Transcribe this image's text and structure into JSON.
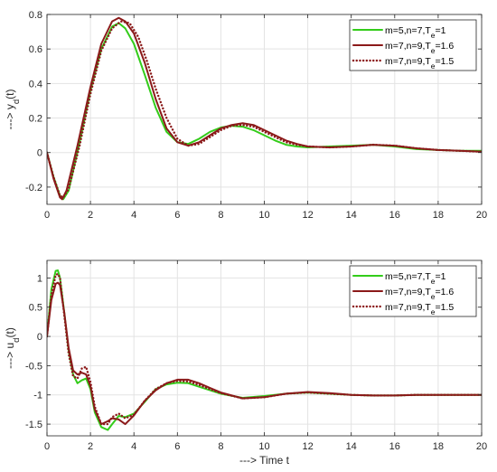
{
  "chart_data": [
    {
      "type": "line",
      "ylabel": "---> y_d(t)",
      "xlabel": "",
      "xlim": [
        0,
        20
      ],
      "ylim": [
        -0.3,
        0.8
      ],
      "xticks": [
        0,
        2,
        4,
        6,
        8,
        10,
        12,
        14,
        16,
        18,
        20
      ],
      "yticks": [
        -0.2,
        0,
        0.2,
        0.4,
        0.6,
        0.8
      ],
      "grid": true,
      "legend_position": "top-right",
      "series": [
        {
          "name": "m=5,n=7,T_e=1",
          "color": "#33cc1a",
          "style": "solid",
          "x": [
            0,
            0.3,
            0.6,
            0.75,
            1.0,
            1.5,
            2.0,
            2.5,
            3.0,
            3.3,
            3.6,
            4.0,
            4.5,
            5.0,
            5.5,
            6.0,
            6.5,
            7.0,
            7.5,
            8.0,
            8.5,
            9.0,
            9.5,
            10.0,
            10.5,
            11.0,
            11.5,
            12.0,
            13.0,
            14.0,
            15.0,
            16.0,
            17.0,
            18.0,
            19.0,
            20.0
          ],
          "y": [
            0,
            -0.14,
            -0.25,
            -0.27,
            -0.22,
            0.06,
            0.36,
            0.6,
            0.73,
            0.75,
            0.72,
            0.63,
            0.45,
            0.26,
            0.12,
            0.06,
            0.05,
            0.08,
            0.12,
            0.145,
            0.155,
            0.15,
            0.13,
            0.1,
            0.07,
            0.045,
            0.035,
            0.03,
            0.035,
            0.04,
            0.045,
            0.035,
            0.02,
            0.015,
            0.01,
            0.01
          ]
        },
        {
          "name": "m=7,n=9,T_e=1.6",
          "color": "#8b1a1a",
          "style": "solid",
          "x": [
            0,
            0.3,
            0.6,
            0.7,
            0.9,
            1.4,
            2.0,
            2.5,
            3.0,
            3.3,
            3.6,
            4.0,
            4.5,
            5.0,
            5.5,
            6.0,
            6.5,
            7.0,
            7.5,
            8.0,
            8.5,
            9.0,
            9.5,
            10.0,
            10.5,
            11.0,
            11.5,
            12.0,
            13.0,
            14.0,
            15.0,
            16.0,
            17.0,
            18.0,
            19.0,
            20.0
          ],
          "y": [
            0,
            -0.15,
            -0.26,
            -0.27,
            -0.22,
            0.04,
            0.38,
            0.63,
            0.76,
            0.78,
            0.76,
            0.69,
            0.52,
            0.31,
            0.14,
            0.06,
            0.04,
            0.06,
            0.1,
            0.14,
            0.16,
            0.17,
            0.16,
            0.13,
            0.1,
            0.07,
            0.05,
            0.035,
            0.03,
            0.035,
            0.045,
            0.04,
            0.025,
            0.015,
            0.01,
            0.005
          ]
        },
        {
          "name": "m=7,n=9,T_e=1.5",
          "color": "#8b1a1a",
          "style": "dotted",
          "x": [
            0,
            0.3,
            0.6,
            0.75,
            1.0,
            1.5,
            2.0,
            2.5,
            3.0,
            3.4,
            3.8,
            4.2,
            4.6,
            5.0,
            5.5,
            6.0,
            6.5,
            7.0,
            7.5,
            8.0,
            8.5,
            9.0,
            9.5,
            10.0,
            10.5,
            11.0,
            11.5,
            12.0,
            13.0,
            14.0,
            15.0,
            16.0,
            17.0,
            18.0,
            19.0,
            20.0
          ],
          "y": [
            0,
            -0.14,
            -0.25,
            -0.26,
            -0.21,
            0.04,
            0.34,
            0.59,
            0.72,
            0.76,
            0.75,
            0.67,
            0.53,
            0.37,
            0.2,
            0.08,
            0.04,
            0.05,
            0.09,
            0.13,
            0.155,
            0.16,
            0.15,
            0.12,
            0.09,
            0.06,
            0.045,
            0.035,
            0.03,
            0.035,
            0.045,
            0.04,
            0.025,
            0.015,
            0.01,
            0.005
          ]
        }
      ]
    },
    {
      "type": "line",
      "ylabel": "---> u_d(t)",
      "xlabel": "---> Time t",
      "xlim": [
        0,
        20
      ],
      "ylim": [
        -1.7,
        1.3
      ],
      "xticks": [
        0,
        2,
        4,
        6,
        8,
        10,
        12,
        14,
        16,
        18,
        20
      ],
      "yticks": [
        -1.5,
        -1,
        -0.5,
        0,
        0.5,
        1
      ],
      "grid": true,
      "legend_position": "top-right",
      "series": [
        {
          "name": "m=5,n=7,T_e=1",
          "color": "#33cc1a",
          "style": "solid",
          "x": [
            0,
            0.2,
            0.4,
            0.5,
            0.6,
            0.8,
            1.0,
            1.2,
            1.4,
            1.6,
            1.8,
            2.0,
            2.2,
            2.5,
            2.8,
            3.0,
            3.3,
            3.6,
            4.0,
            4.5,
            5.0,
            5.5,
            6.0,
            6.5,
            7.0,
            7.5,
            8.0,
            9.0,
            10.0,
            11.0,
            12.0,
            13.0,
            14.0,
            15.0,
            16.0,
            17.0,
            18.0,
            19.0,
            20.0
          ],
          "y": [
            0,
            0.8,
            1.12,
            1.13,
            1.0,
            0.4,
            -0.25,
            -0.65,
            -0.8,
            -0.75,
            -0.72,
            -0.9,
            -1.3,
            -1.55,
            -1.6,
            -1.5,
            -1.36,
            -1.38,
            -1.32,
            -1.12,
            -0.9,
            -0.82,
            -0.79,
            -0.8,
            -0.86,
            -0.92,
            -0.98,
            -1.05,
            -1.02,
            -0.98,
            -0.96,
            -0.98,
            -1.0,
            -1.01,
            -1.01,
            -1.0,
            -1.0,
            -1.0,
            -1.0
          ]
        },
        {
          "name": "m=7,n=9,T_e=1.6",
          "color": "#8b1a1a",
          "style": "solid",
          "x": [
            0,
            0.2,
            0.4,
            0.5,
            0.6,
            0.8,
            1.0,
            1.2,
            1.4,
            1.6,
            1.8,
            2.0,
            2.2,
            2.5,
            2.8,
            3.0,
            3.3,
            3.6,
            4.0,
            4.5,
            5.0,
            5.5,
            6.0,
            6.5,
            7.0,
            7.5,
            8.0,
            9.0,
            10.0,
            11.0,
            12.0,
            13.0,
            14.0,
            15.0,
            16.0,
            17.0,
            18.0,
            19.0,
            20.0
          ],
          "y": [
            0,
            0.62,
            0.9,
            0.92,
            0.88,
            0.4,
            -0.2,
            -0.58,
            -0.65,
            -0.62,
            -0.65,
            -0.85,
            -1.25,
            -1.5,
            -1.45,
            -1.4,
            -1.42,
            -1.5,
            -1.35,
            -1.1,
            -0.92,
            -0.8,
            -0.74,
            -0.74,
            -0.8,
            -0.88,
            -0.96,
            -1.06,
            -1.04,
            -0.98,
            -0.95,
            -0.97,
            -1.0,
            -1.01,
            -1.01,
            -1.0,
            -1.0,
            -1.0,
            -1.0
          ]
        },
        {
          "name": "m=7,n=9,T_e=1.5",
          "color": "#8b1a1a",
          "style": "dotted",
          "x": [
            0,
            0.2,
            0.4,
            0.5,
            0.6,
            0.8,
            1.0,
            1.2,
            1.4,
            1.6,
            1.8,
            2.0,
            2.2,
            2.5,
            2.8,
            3.0,
            3.3,
            3.6,
            4.0,
            4.5,
            5.0,
            5.5,
            6.0,
            6.5,
            7.0,
            7.5,
            8.0,
            9.0,
            10.0,
            11.0,
            12.0,
            13.0,
            14.0,
            15.0,
            16.0,
            17.0,
            18.0,
            19.0,
            20.0
          ],
          "y": [
            0,
            0.7,
            1.05,
            1.07,
            1.0,
            0.35,
            -0.3,
            -0.68,
            -0.72,
            -0.55,
            -0.52,
            -0.78,
            -1.2,
            -1.5,
            -1.5,
            -1.38,
            -1.32,
            -1.4,
            -1.34,
            -1.1,
            -0.9,
            -0.8,
            -0.76,
            -0.77,
            -0.83,
            -0.9,
            -0.97,
            -1.06,
            -1.04,
            -0.98,
            -0.96,
            -0.98,
            -1.0,
            -1.01,
            -1.01,
            -1.0,
            -1.0,
            -1.0,
            -1.0
          ]
        }
      ]
    }
  ]
}
